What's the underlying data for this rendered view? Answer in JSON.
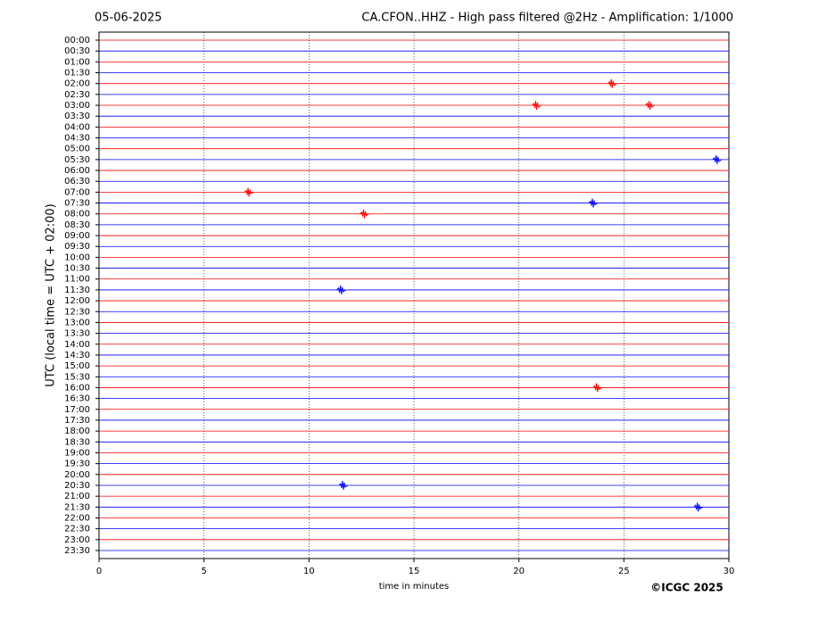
{
  "chart_data": {
    "type": "helicorder",
    "title_left": "05-06-2025",
    "title": "CA.CFON..HHZ - High pass filtered @2Hz - Amplification: 1/1000",
    "xlabel": "time in minutes",
    "ylabel": "UTC (local time = UTC + 02:00)",
    "credit": "©ICGC 2025",
    "xlim": [
      0,
      30
    ],
    "xticks": [
      0,
      5,
      10,
      15,
      20,
      25,
      30
    ],
    "grid": true,
    "colors": [
      "#ff0000",
      "#0000ff"
    ],
    "categories": [
      "00:00",
      "00:30",
      "01:00",
      "01:30",
      "02:00",
      "02:30",
      "03:00",
      "03:30",
      "04:00",
      "04:30",
      "05:00",
      "05:30",
      "06:00",
      "06:30",
      "07:00",
      "07:30",
      "08:00",
      "08:30",
      "09:00",
      "09:30",
      "10:00",
      "10:30",
      "11:00",
      "11:30",
      "12:00",
      "12:30",
      "13:00",
      "13:30",
      "14:00",
      "14:30",
      "15:00",
      "15:30",
      "16:00",
      "16:30",
      "17:00",
      "17:30",
      "18:00",
      "18:30",
      "19:00",
      "19:30",
      "20:00",
      "20:30",
      "21:00",
      "21:30",
      "22:00",
      "22:30",
      "23:00",
      "23:30"
    ],
    "events": [
      {
        "row": "02:00",
        "minute": 24.4
      },
      {
        "row": "03:00",
        "minute": 20.8
      },
      {
        "row": "03:00",
        "minute": 26.2
      },
      {
        "row": "05:30",
        "minute": 29.4
      },
      {
        "row": "07:00",
        "minute": 7.1
      },
      {
        "row": "07:30",
        "minute": 23.5
      },
      {
        "row": "08:00",
        "minute": 12.6
      },
      {
        "row": "11:30",
        "minute": 11.5
      },
      {
        "row": "16:00",
        "minute": 23.7
      },
      {
        "row": "20:30",
        "minute": 11.6
      },
      {
        "row": "21:30",
        "minute": 28.5
      }
    ]
  }
}
